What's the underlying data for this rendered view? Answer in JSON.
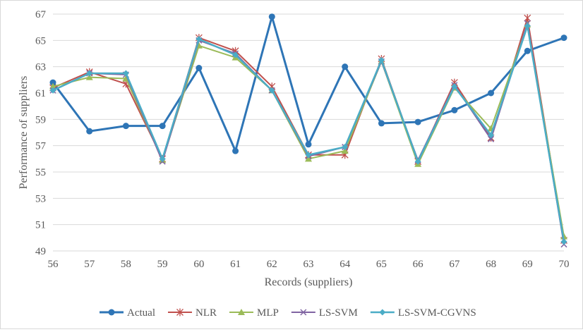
{
  "chart_data": {
    "type": "line",
    "xlabel": "Records (suppliers)",
    "ylabel": "Performance of suppliers",
    "x": [
      56,
      57,
      58,
      59,
      60,
      61,
      62,
      63,
      64,
      65,
      66,
      67,
      68,
      69,
      70
    ],
    "ylim": [
      49,
      67
    ],
    "yticks": [
      49,
      51,
      53,
      55,
      57,
      59,
      61,
      63,
      65,
      67
    ],
    "grid": true,
    "legend_position": "bottom",
    "series": [
      {
        "name": "Actual",
        "color": "#2e75b6",
        "marker": "circle",
        "values": [
          61.8,
          58.1,
          58.5,
          58.5,
          62.9,
          56.6,
          66.8,
          57.1,
          63.0,
          58.7,
          58.8,
          59.7,
          61.0,
          64.2,
          65.2
        ]
      },
      {
        "name": "NLR",
        "color": "#c0504d",
        "marker": "star",
        "values": [
          61.4,
          62.6,
          61.7,
          56.0,
          65.2,
          64.2,
          61.5,
          56.3,
          56.3,
          63.6,
          55.8,
          61.8,
          57.6,
          66.7,
          49.8
        ]
      },
      {
        "name": "MLP",
        "color": "#9bbb59",
        "marker": "triangle",
        "values": [
          61.5,
          62.2,
          62.1,
          55.9,
          64.6,
          63.7,
          61.2,
          56.0,
          56.6,
          63.4,
          55.6,
          61.4,
          58.3,
          66.2,
          50.1
        ]
      },
      {
        "name": "LS-SVM",
        "color": "#8064a2",
        "marker": "x",
        "values": [
          61.2,
          62.5,
          62.4,
          55.8,
          65.0,
          64.0,
          61.2,
          56.2,
          56.9,
          63.4,
          55.9,
          61.6,
          57.5,
          66.3,
          49.5
        ]
      },
      {
        "name": "LS-SVM-CGVNS",
        "color": "#4bacc6",
        "marker": "diamond",
        "values": [
          61.2,
          62.5,
          62.5,
          56.0,
          65.1,
          63.9,
          61.2,
          56.3,
          56.9,
          63.5,
          55.8,
          61.5,
          57.8,
          66.1,
          49.7
        ]
      }
    ]
  }
}
